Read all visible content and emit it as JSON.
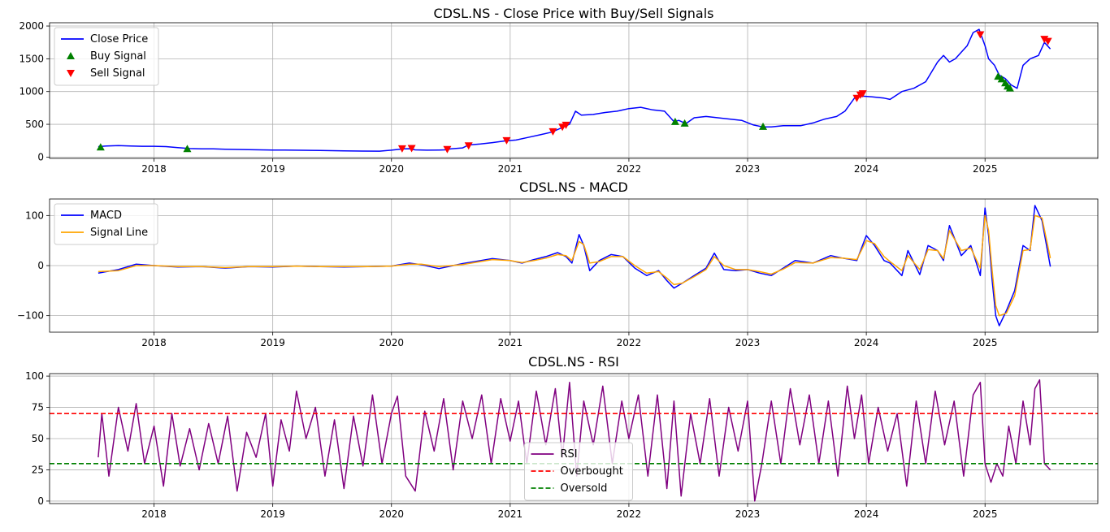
{
  "chart_data": [
    {
      "type": "line",
      "title": "CDSL.NS - Close Price with Buy/Sell Signals",
      "xlabel": "",
      "ylabel": "",
      "xlim": [
        2017.12,
        2025.95
      ],
      "ylim": [
        -20,
        2050
      ],
      "yticks": [
        0,
        500,
        1000,
        1500,
        2000
      ],
      "xticks": [
        "2018",
        "2019",
        "2020",
        "2021",
        "2022",
        "2023",
        "2024",
        "2025"
      ],
      "grid": true,
      "legend_position": "top-left",
      "legend": [
        "Close Price",
        "Buy Signal",
        "Sell Signal"
      ],
      "series": [
        {
          "name": "Close Price",
          "color": "#0000ff",
          "x": [
            2017.53,
            2017.6,
            2017.7,
            2017.8,
            2017.9,
            2018.0,
            2018.1,
            2018.2,
            2018.3,
            2018.4,
            2018.5,
            2018.6,
            2018.75,
            2018.9,
            2019.0,
            2019.1,
            2019.25,
            2019.4,
            2019.5,
            2019.6,
            2019.75,
            2019.9,
            2020.0,
            2020.1,
            2020.15,
            2020.2,
            2020.3,
            2020.4,
            2020.45,
            2020.5,
            2020.6,
            2020.65,
            2020.75,
            2020.85,
            2020.95,
            2021.05,
            2021.15,
            2021.25,
            2021.35,
            2021.4,
            2021.45,
            2021.5,
            2021.55,
            2021.6,
            2021.7,
            2021.8,
            2021.9,
            2022.0,
            2022.1,
            2022.2,
            2022.3,
            2022.38,
            2022.42,
            2022.48,
            2022.55,
            2022.65,
            2022.75,
            2022.85,
            2022.95,
            2023.05,
            2023.13,
            2023.2,
            2023.3,
            2023.45,
            2023.55,
            2023.65,
            2023.75,
            2023.82,
            2023.9,
            2023.97,
            2024.05,
            2024.15,
            2024.2,
            2024.3,
            2024.4,
            2024.5,
            2024.55,
            2024.6,
            2024.65,
            2024.7,
            2024.75,
            2024.8,
            2024.85,
            2024.9,
            2024.95,
            2024.97,
            2025.0,
            2025.03,
            2025.08,
            2025.12,
            2025.17,
            2025.22,
            2025.27,
            2025.32,
            2025.38,
            2025.45,
            2025.5,
            2025.55
          ],
          "y": [
            160,
            170,
            175,
            170,
            165,
            165,
            160,
            145,
            130,
            125,
            125,
            120,
            115,
            110,
            108,
            108,
            104,
            100,
            98,
            95,
            92,
            90,
            105,
            125,
            128,
            110,
            105,
            108,
            110,
            125,
            140,
            185,
            200,
            220,
            245,
            260,
            300,
            340,
            380,
            420,
            460,
            500,
            700,
            640,
            650,
            680,
            700,
            740,
            760,
            720,
            700,
            540,
            560,
            510,
            600,
            620,
            600,
            580,
            560,
            490,
            460,
            460,
            480,
            480,
            520,
            580,
            620,
            700,
            900,
            930,
            920,
            900,
            880,
            1000,
            1050,
            1150,
            1300,
            1450,
            1550,
            1450,
            1500,
            1600,
            1700,
            1900,
            1950,
            1850,
            1700,
            1500,
            1400,
            1250,
            1200,
            1100,
            1050,
            1400,
            1500,
            1550,
            1750,
            1650
          ]
        },
        {
          "name": "Buy Signal",
          "color": "#008000",
          "marker": "triangle-up",
          "x": [
            2017.55,
            2018.28,
            2022.39,
            2022.47,
            2023.13,
            2025.11,
            2025.14,
            2025.17,
            2025.19,
            2025.21
          ],
          "y": [
            150,
            125,
            540,
            515,
            465,
            1230,
            1190,
            1130,
            1080,
            1050
          ]
        },
        {
          "name": "Sell Signal",
          "color": "#ff0000",
          "marker": "triangle-down",
          "x": [
            2020.09,
            2020.17,
            2020.47,
            2020.65,
            2020.97,
            2021.36,
            2021.44,
            2021.47,
            2023.92,
            2023.95,
            2023.97,
            2024.96,
            2025.5,
            2025.53
          ],
          "y": [
            130,
            135,
            120,
            175,
            255,
            390,
            460,
            490,
            900,
            950,
            970,
            1870,
            1800,
            1770
          ]
        }
      ]
    },
    {
      "type": "line",
      "title": "CDSL.NS - MACD",
      "xlabel": "",
      "ylabel": "",
      "xlim": [
        2017.12,
        2025.95
      ],
      "ylim": [
        -133,
        133
      ],
      "yticks": [
        -100,
        0,
        100
      ],
      "xticks": [
        "2018",
        "2019",
        "2020",
        "2021",
        "2022",
        "2023",
        "2024",
        "2025"
      ],
      "grid": true,
      "legend_position": "top-left",
      "legend": [
        "MACD",
        "Signal Line"
      ],
      "series": [
        {
          "name": "MACD",
          "color": "#0000ff",
          "x": [
            2017.53,
            2017.7,
            2017.85,
            2018.0,
            2018.2,
            2018.4,
            2018.6,
            2018.8,
            2019.0,
            2019.2,
            2019.4,
            2019.6,
            2019.8,
            2020.0,
            2020.15,
            2020.25,
            2020.4,
            2020.6,
            2020.7,
            2020.85,
            2021.0,
            2021.1,
            2021.2,
            2021.3,
            2021.4,
            2021.47,
            2021.52,
            2021.58,
            2021.62,
            2021.67,
            2021.75,
            2021.85,
            2021.95,
            2022.05,
            2022.15,
            2022.25,
            2022.32,
            2022.38,
            2022.45,
            2022.55,
            2022.65,
            2022.72,
            2022.8,
            2022.9,
            2023.0,
            2023.1,
            2023.2,
            2023.3,
            2023.4,
            2023.55,
            2023.7,
            2023.8,
            2023.92,
            2024.0,
            2024.07,
            2024.15,
            2024.2,
            2024.3,
            2024.35,
            2024.45,
            2024.52,
            2024.6,
            2024.65,
            2024.7,
            2024.8,
            2024.88,
            2024.96,
            2025.0,
            2025.03,
            2025.06,
            2025.09,
            2025.12,
            2025.18,
            2025.25,
            2025.32,
            2025.38,
            2025.42,
            2025.48,
            2025.55
          ],
          "y": [
            -15,
            -8,
            3,
            0,
            -3,
            -2,
            -5,
            -2,
            -3,
            -1,
            -2,
            -3,
            -2,
            -1,
            5,
            2,
            -6,
            4,
            8,
            14,
            10,
            5,
            12,
            18,
            26,
            18,
            5,
            62,
            40,
            -10,
            10,
            22,
            18,
            -5,
            -20,
            -10,
            -30,
            -45,
            -35,
            -20,
            -5,
            25,
            -8,
            -10,
            -8,
            -15,
            -20,
            -5,
            10,
            5,
            20,
            15,
            10,
            60,
            40,
            10,
            5,
            -20,
            30,
            -18,
            40,
            30,
            10,
            80,
            20,
            40,
            -20,
            115,
            60,
            -30,
            -100,
            -120,
            -90,
            -50,
            40,
            30,
            120,
            90,
            -2
          ]
        },
        {
          "name": "Signal Line",
          "color": "#ffa500",
          "x": [
            2017.53,
            2017.7,
            2017.85,
            2018.0,
            2018.2,
            2018.4,
            2018.6,
            2018.8,
            2019.0,
            2019.2,
            2019.4,
            2019.6,
            2019.8,
            2020.0,
            2020.15,
            2020.25,
            2020.4,
            2020.6,
            2020.7,
            2020.85,
            2021.0,
            2021.1,
            2021.2,
            2021.3,
            2021.4,
            2021.47,
            2021.52,
            2021.58,
            2021.62,
            2021.67,
            2021.75,
            2021.85,
            2021.95,
            2022.05,
            2022.15,
            2022.25,
            2022.32,
            2022.38,
            2022.45,
            2022.55,
            2022.65,
            2022.72,
            2022.8,
            2022.9,
            2023.0,
            2023.1,
            2023.2,
            2023.3,
            2023.4,
            2023.55,
            2023.7,
            2023.8,
            2023.92,
            2024.0,
            2024.07,
            2024.15,
            2024.2,
            2024.3,
            2024.35,
            2024.45,
            2024.52,
            2024.6,
            2024.65,
            2024.7,
            2024.8,
            2024.88,
            2024.96,
            2025.0,
            2025.03,
            2025.06,
            2025.09,
            2025.12,
            2025.18,
            2025.25,
            2025.32,
            2025.38,
            2025.42,
            2025.48,
            2025.55
          ],
          "y": [
            -12,
            -10,
            0,
            0,
            -2,
            -2,
            -4,
            -2,
            -2,
            -1,
            -2,
            -2,
            -2,
            -1,
            3,
            3,
            -2,
            2,
            6,
            12,
            10,
            6,
            10,
            15,
            22,
            20,
            10,
            48,
            42,
            5,
            8,
            18,
            18,
            0,
            -15,
            -12,
            -25,
            -38,
            -35,
            -22,
            -8,
            18,
            0,
            -8,
            -8,
            -12,
            -17,
            -7,
            6,
            5,
            16,
            15,
            12,
            50,
            44,
            18,
            8,
            -10,
            20,
            -8,
            32,
            30,
            14,
            70,
            30,
            35,
            -5,
            100,
            70,
            -10,
            -80,
            -100,
            -95,
            -60,
            30,
            32,
            100,
            95,
            15
          ]
        }
      ]
    },
    {
      "type": "line",
      "title": "CDSL.NS - RSI",
      "xlabel": "",
      "ylabel": "",
      "xlim": [
        2017.12,
        2025.95
      ],
      "ylim": [
        -2,
        102
      ],
      "yticks": [
        0,
        25,
        50,
        75,
        100
      ],
      "xticks": [
        "2018",
        "2019",
        "2020",
        "2021",
        "2022",
        "2023",
        "2024",
        "2025"
      ],
      "grid": true,
      "legend_position": "bottom-center",
      "legend": [
        "RSI",
        "Overbought",
        "Oversold"
      ],
      "series": [
        {
          "name": "RSI",
          "color": "#800080",
          "x": [
            2017.53,
            2017.56,
            2017.62,
            2017.7,
            2017.78,
            2017.85,
            2017.92,
            2018.0,
            2018.08,
            2018.15,
            2018.22,
            2018.3,
            2018.38,
            2018.46,
            2018.54,
            2018.62,
            2018.7,
            2018.78,
            2018.86,
            2018.94,
            2019.0,
            2019.07,
            2019.14,
            2019.2,
            2019.28,
            2019.36,
            2019.44,
            2019.52,
            2019.6,
            2019.68,
            2019.76,
            2019.84,
            2019.92,
            2020.0,
            2020.05,
            2020.12,
            2020.2,
            2020.28,
            2020.36,
            2020.44,
            2020.52,
            2020.6,
            2020.68,
            2020.76,
            2020.84,
            2020.92,
            2021.0,
            2021.07,
            2021.14,
            2021.22,
            2021.3,
            2021.38,
            2021.44,
            2021.5,
            2021.56,
            2021.62,
            2021.7,
            2021.78,
            2021.86,
            2021.94,
            2022.0,
            2022.08,
            2022.16,
            2022.24,
            2022.32,
            2022.38,
            2022.44,
            2022.52,
            2022.6,
            2022.68,
            2022.76,
            2022.84,
            2022.92,
            2023.0,
            2023.06,
            2023.12,
            2023.2,
            2023.28,
            2023.36,
            2023.44,
            2023.52,
            2023.6,
            2023.68,
            2023.76,
            2023.84,
            2023.9,
            2023.96,
            2024.02,
            2024.1,
            2024.18,
            2024.26,
            2024.34,
            2024.42,
            2024.5,
            2024.58,
            2024.66,
            2024.74,
            2024.82,
            2024.9,
            2024.96,
            2025.0,
            2025.05,
            2025.1,
            2025.15,
            2025.2,
            2025.26,
            2025.32,
            2025.38,
            2025.42,
            2025.46,
            2025.5,
            2025.55
          ],
          "y": [
            35,
            70,
            20,
            75,
            40,
            78,
            30,
            60,
            12,
            70,
            28,
            58,
            25,
            62,
            30,
            68,
            8,
            55,
            35,
            70,
            12,
            65,
            40,
            88,
            50,
            75,
            20,
            65,
            10,
            68,
            28,
            85,
            30,
            70,
            84,
            20,
            8,
            72,
            40,
            82,
            25,
            80,
            50,
            85,
            30,
            82,
            48,
            80,
            30,
            88,
            45,
            90,
            35,
            95,
            20,
            80,
            45,
            92,
            30,
            80,
            50,
            85,
            20,
            85,
            10,
            80,
            4,
            70,
            30,
            82,
            20,
            75,
            40,
            80,
            0,
            30,
            80,
            30,
            90,
            45,
            85,
            30,
            80,
            20,
            92,
            50,
            85,
            30,
            75,
            40,
            70,
            12,
            80,
            30,
            88,
            45,
            80,
            20,
            85,
            95,
            30,
            15,
            30,
            20,
            60,
            30,
            80,
            45,
            90,
            97,
            30,
            25
          ]
        },
        {
          "name": "Overbought",
          "color": "#ff0000",
          "style": "dashed",
          "y_constant": 70
        },
        {
          "name": "Oversold",
          "color": "#008000",
          "style": "dashed",
          "y_constant": 30
        }
      ]
    }
  ]
}
